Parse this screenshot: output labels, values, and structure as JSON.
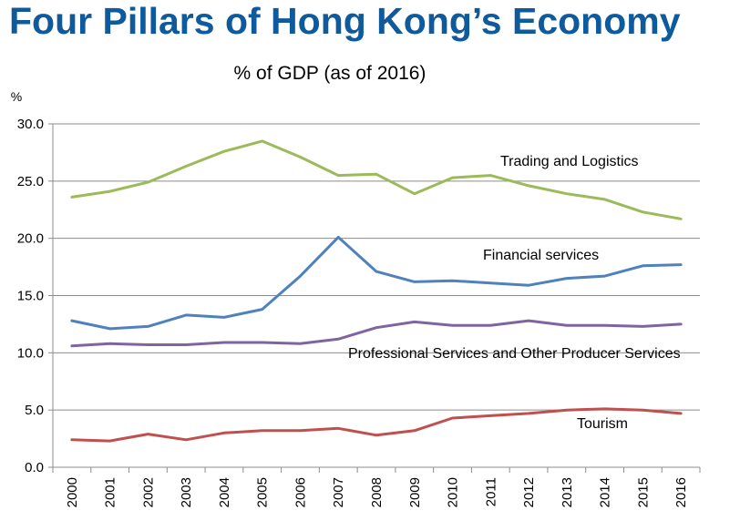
{
  "page_title": "Four Pillars of Hong Kong’s Economy",
  "chart_data": {
    "type": "line",
    "title": "% of GDP (as of 2016)",
    "ylabel": "%",
    "xlabel": "",
    "ylim": [
      0,
      30
    ],
    "yticks": [
      "0.0",
      "5.0",
      "10.0",
      "15.0",
      "20.0",
      "25.0",
      "30.0"
    ],
    "grid": true,
    "categories": [
      "2000",
      "2001",
      "2002",
      "2003",
      "2004",
      "2005",
      "2006",
      "2007",
      "2008",
      "2009",
      "2010",
      "2011",
      "2012",
      "2013",
      "2014",
      "2015",
      "2016"
    ],
    "series": [
      {
        "name": "Trading and Logistics",
        "color": "#9bbb59",
        "values": [
          23.6,
          24.1,
          24.9,
          26.3,
          27.6,
          28.5,
          27.1,
          25.5,
          25.6,
          23.9,
          25.3,
          25.5,
          24.6,
          23.9,
          23.4,
          22.3,
          21.7
        ]
      },
      {
        "name": "Financial services",
        "color": "#4f81bd",
        "values": [
          12.8,
          12.1,
          12.3,
          13.3,
          13.1,
          13.8,
          16.7,
          20.1,
          17.1,
          16.2,
          16.3,
          16.1,
          15.9,
          16.5,
          16.7,
          17.6,
          17.7
        ]
      },
      {
        "name": "Professional Services and Other Producer Services",
        "color": "#8064a2",
        "values": [
          10.6,
          10.8,
          10.7,
          10.7,
          10.9,
          10.9,
          10.8,
          11.2,
          12.2,
          12.7,
          12.4,
          12.4,
          12.8,
          12.4,
          12.4,
          12.3,
          12.5
        ]
      },
      {
        "name": "Tourism",
        "color": "#c0504d",
        "values": [
          2.4,
          2.3,
          2.9,
          2.4,
          3.0,
          3.2,
          3.2,
          3.4,
          2.8,
          3.2,
          4.3,
          4.5,
          4.7,
          5.0,
          5.1,
          5.0,
          4.7
        ]
      }
    ]
  }
}
